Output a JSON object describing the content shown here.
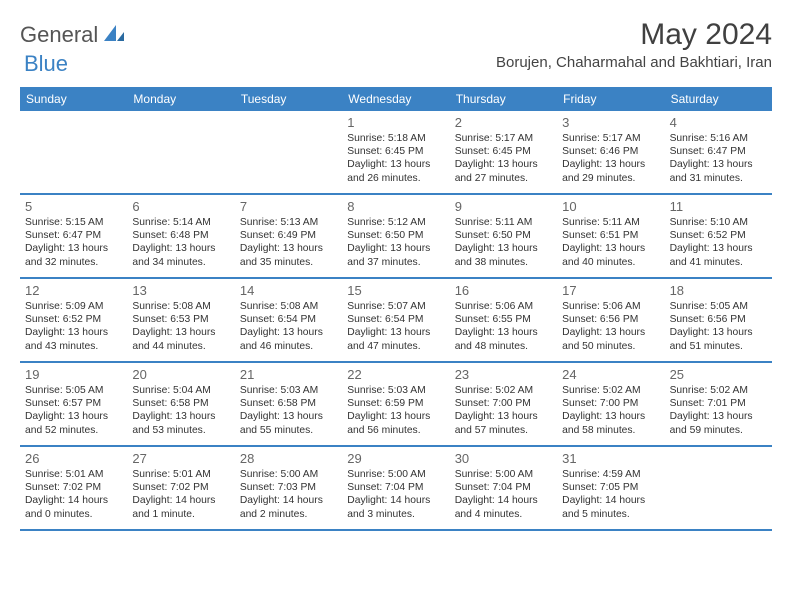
{
  "brand": {
    "part1": "General",
    "part2": "Blue"
  },
  "title": "May 2024",
  "location": "Borujen, Chaharmahal and Bakhtiari, Iran",
  "dayNames": [
    "Sunday",
    "Monday",
    "Tuesday",
    "Wednesday",
    "Thursday",
    "Friday",
    "Saturday"
  ],
  "colors": {
    "headerBg": "#3b82c4",
    "headerText": "#ffffff",
    "text": "#333333",
    "titleText": "#404040"
  },
  "weeks": [
    [
      null,
      null,
      null,
      {
        "n": "1",
        "sr": "5:18 AM",
        "ss": "6:45 PM",
        "dl": "13 hours and 26 minutes."
      },
      {
        "n": "2",
        "sr": "5:17 AM",
        "ss": "6:45 PM",
        "dl": "13 hours and 27 minutes."
      },
      {
        "n": "3",
        "sr": "5:17 AM",
        "ss": "6:46 PM",
        "dl": "13 hours and 29 minutes."
      },
      {
        "n": "4",
        "sr": "5:16 AM",
        "ss": "6:47 PM",
        "dl": "13 hours and 31 minutes."
      }
    ],
    [
      {
        "n": "5",
        "sr": "5:15 AM",
        "ss": "6:47 PM",
        "dl": "13 hours and 32 minutes."
      },
      {
        "n": "6",
        "sr": "5:14 AM",
        "ss": "6:48 PM",
        "dl": "13 hours and 34 minutes."
      },
      {
        "n": "7",
        "sr": "5:13 AM",
        "ss": "6:49 PM",
        "dl": "13 hours and 35 minutes."
      },
      {
        "n": "8",
        "sr": "5:12 AM",
        "ss": "6:50 PM",
        "dl": "13 hours and 37 minutes."
      },
      {
        "n": "9",
        "sr": "5:11 AM",
        "ss": "6:50 PM",
        "dl": "13 hours and 38 minutes."
      },
      {
        "n": "10",
        "sr": "5:11 AM",
        "ss": "6:51 PM",
        "dl": "13 hours and 40 minutes."
      },
      {
        "n": "11",
        "sr": "5:10 AM",
        "ss": "6:52 PM",
        "dl": "13 hours and 41 minutes."
      }
    ],
    [
      {
        "n": "12",
        "sr": "5:09 AM",
        "ss": "6:52 PM",
        "dl": "13 hours and 43 minutes."
      },
      {
        "n": "13",
        "sr": "5:08 AM",
        "ss": "6:53 PM",
        "dl": "13 hours and 44 minutes."
      },
      {
        "n": "14",
        "sr": "5:08 AM",
        "ss": "6:54 PM",
        "dl": "13 hours and 46 minutes."
      },
      {
        "n": "15",
        "sr": "5:07 AM",
        "ss": "6:54 PM",
        "dl": "13 hours and 47 minutes."
      },
      {
        "n": "16",
        "sr": "5:06 AM",
        "ss": "6:55 PM",
        "dl": "13 hours and 48 minutes."
      },
      {
        "n": "17",
        "sr": "5:06 AM",
        "ss": "6:56 PM",
        "dl": "13 hours and 50 minutes."
      },
      {
        "n": "18",
        "sr": "5:05 AM",
        "ss": "6:56 PM",
        "dl": "13 hours and 51 minutes."
      }
    ],
    [
      {
        "n": "19",
        "sr": "5:05 AM",
        "ss": "6:57 PM",
        "dl": "13 hours and 52 minutes."
      },
      {
        "n": "20",
        "sr": "5:04 AM",
        "ss": "6:58 PM",
        "dl": "13 hours and 53 minutes."
      },
      {
        "n": "21",
        "sr": "5:03 AM",
        "ss": "6:58 PM",
        "dl": "13 hours and 55 minutes."
      },
      {
        "n": "22",
        "sr": "5:03 AM",
        "ss": "6:59 PM",
        "dl": "13 hours and 56 minutes."
      },
      {
        "n": "23",
        "sr": "5:02 AM",
        "ss": "7:00 PM",
        "dl": "13 hours and 57 minutes."
      },
      {
        "n": "24",
        "sr": "5:02 AM",
        "ss": "7:00 PM",
        "dl": "13 hours and 58 minutes."
      },
      {
        "n": "25",
        "sr": "5:02 AM",
        "ss": "7:01 PM",
        "dl": "13 hours and 59 minutes."
      }
    ],
    [
      {
        "n": "26",
        "sr": "5:01 AM",
        "ss": "7:02 PM",
        "dl": "14 hours and 0 minutes."
      },
      {
        "n": "27",
        "sr": "5:01 AM",
        "ss": "7:02 PM",
        "dl": "14 hours and 1 minute."
      },
      {
        "n": "28",
        "sr": "5:00 AM",
        "ss": "7:03 PM",
        "dl": "14 hours and 2 minutes."
      },
      {
        "n": "29",
        "sr": "5:00 AM",
        "ss": "7:04 PM",
        "dl": "14 hours and 3 minutes."
      },
      {
        "n": "30",
        "sr": "5:00 AM",
        "ss": "7:04 PM",
        "dl": "14 hours and 4 minutes."
      },
      {
        "n": "31",
        "sr": "4:59 AM",
        "ss": "7:05 PM",
        "dl": "14 hours and 5 minutes."
      },
      null
    ]
  ]
}
